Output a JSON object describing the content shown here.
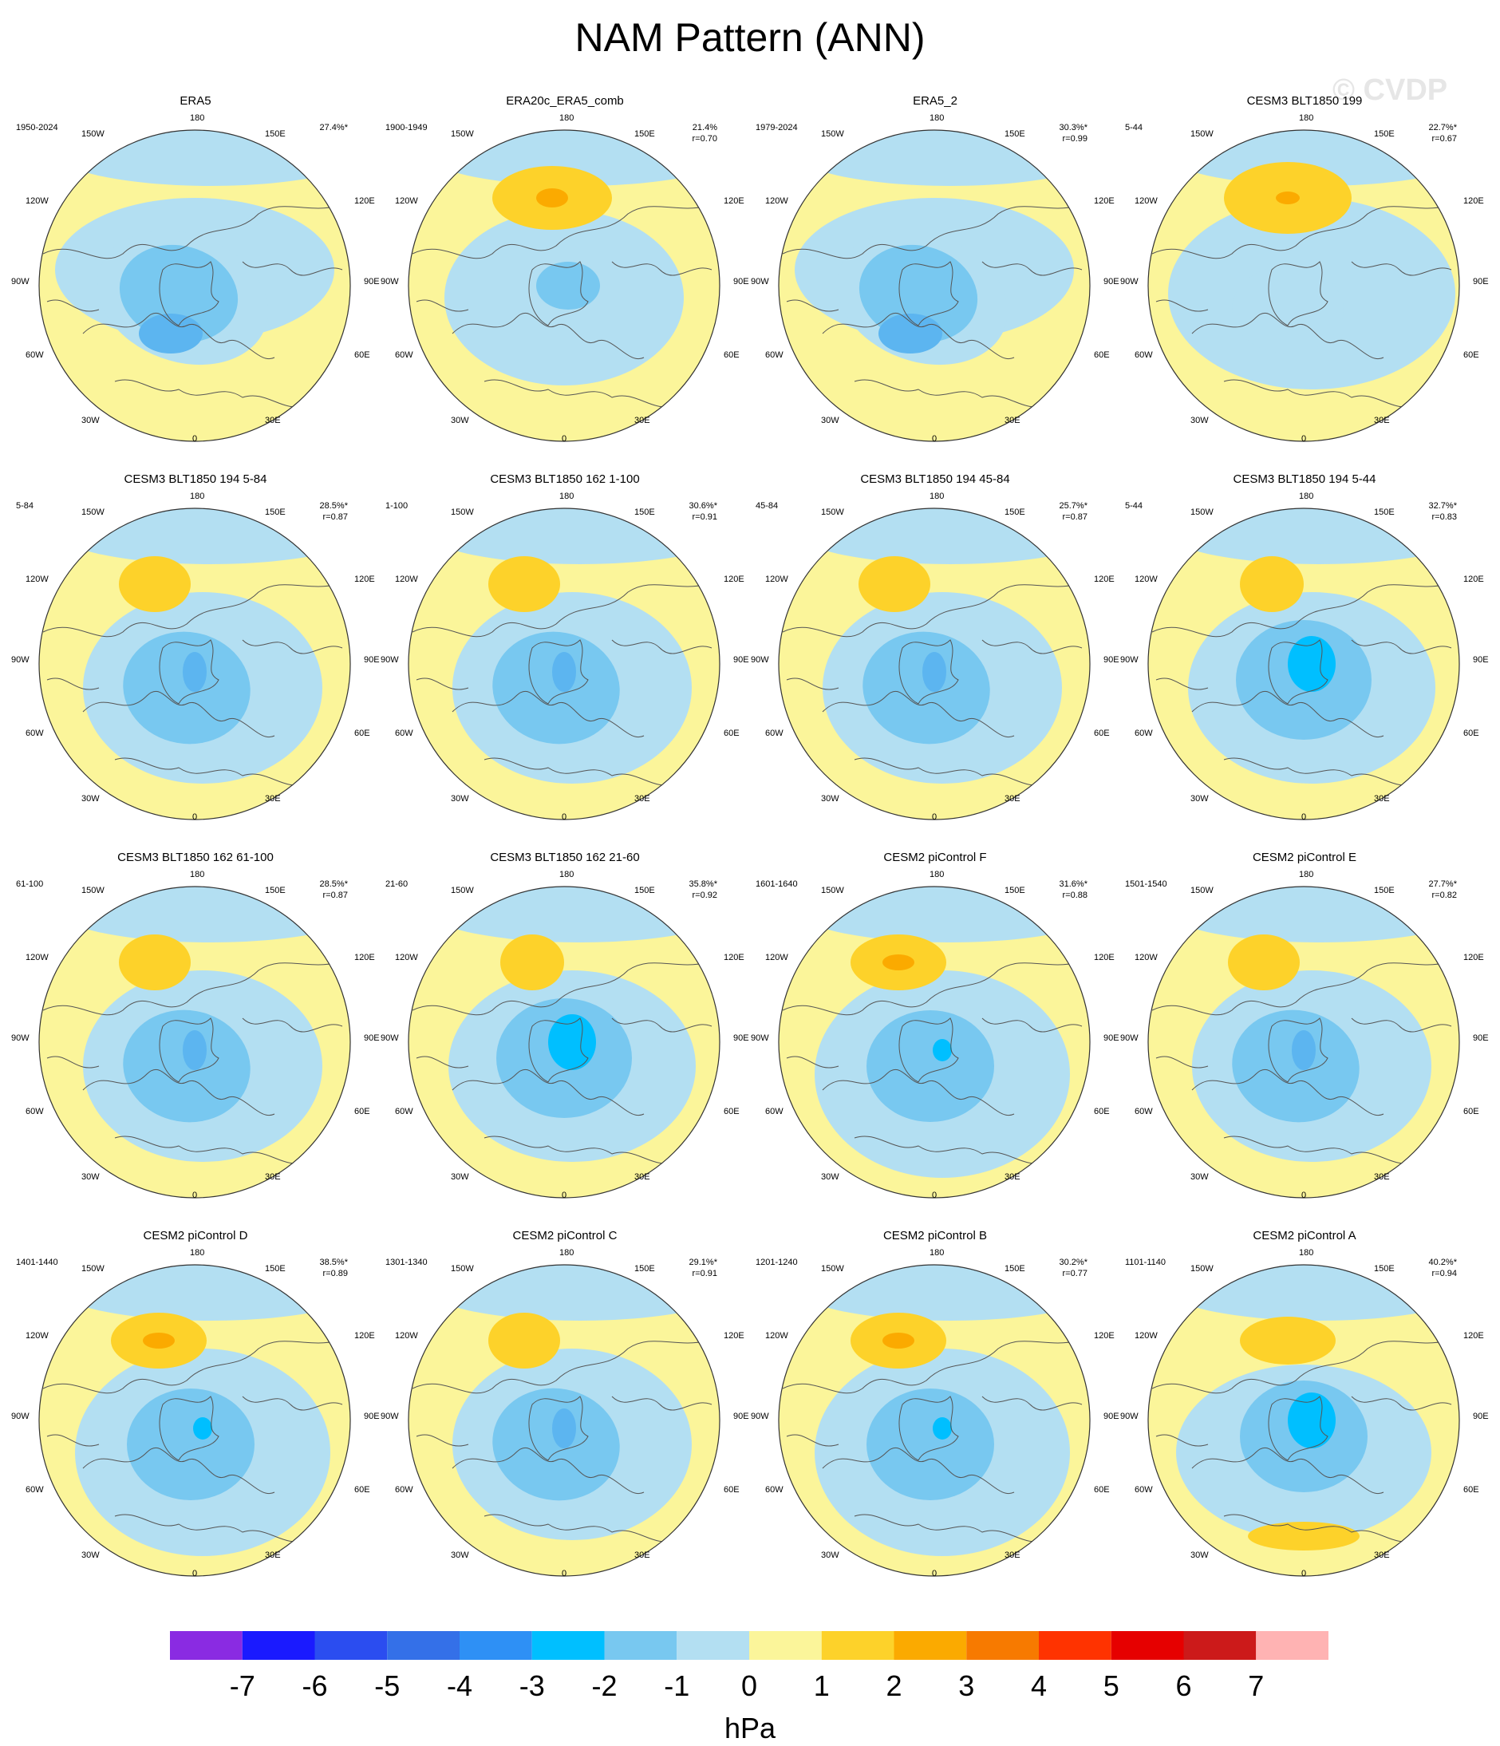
{
  "title": "NAM Pattern (ANN)",
  "watermark": "© CVDP",
  "lon_labels": [
    "180",
    "150W",
    "150E",
    "120W",
    "120E",
    "90W",
    "90E",
    "60W",
    "60E",
    "30W",
    "30E",
    "0"
  ],
  "panels": [
    {
      "title": "ERA5",
      "period": "1950-2024",
      "pct": "27.4%*",
      "r": "",
      "pattern": "A"
    },
    {
      "title": "ERA20c_ERA5_comb",
      "period": "1900-1949",
      "pct": "21.4%",
      "r": "r=0.70",
      "pattern": "B"
    },
    {
      "title": "ERA5_2",
      "period": "1979-2024",
      "pct": "30.3%*",
      "r": "r=0.99",
      "pattern": "A"
    },
    {
      "title": "CESM3 BLT1850 199",
      "period": "5-44",
      "pct": "22.7%*",
      "r": "r=0.67",
      "pattern": "C"
    },
    {
      "title": "CESM3 BLT1850 194 5-84",
      "period": "5-84",
      "pct": "28.5%*",
      "r": "r=0.87",
      "pattern": "D"
    },
    {
      "title": "CESM3 BLT1850 162 1-100",
      "period": "1-100",
      "pct": "30.6%*",
      "r": "r=0.91",
      "pattern": "D"
    },
    {
      "title": "CESM3 BLT1850 194 45-84",
      "period": "45-84",
      "pct": "25.7%*",
      "r": "r=0.87",
      "pattern": "D"
    },
    {
      "title": "CESM3 BLT1850 194 5-44",
      "period": "5-44",
      "pct": "32.7%*",
      "r": "r=0.83",
      "pattern": "E"
    },
    {
      "title": "CESM3 BLT1850 162 61-100",
      "period": "61-100",
      "pct": "28.5%*",
      "r": "r=0.87",
      "pattern": "D"
    },
    {
      "title": "CESM3 BLT1850 162 21-60",
      "period": "21-60",
      "pct": "35.8%*",
      "r": "r=0.92",
      "pattern": "E"
    },
    {
      "title": "CESM2 piControl F",
      "period": "1601-1640",
      "pct": "31.6%*",
      "r": "r=0.88",
      "pattern": "F"
    },
    {
      "title": "CESM2 piControl E",
      "period": "1501-1540",
      "pct": "27.7%*",
      "r": "r=0.82",
      "pattern": "D"
    },
    {
      "title": "CESM2 piControl D",
      "period": "1401-1440",
      "pct": "38.5%*",
      "r": "r=0.89",
      "pattern": "F"
    },
    {
      "title": "CESM2 piControl C",
      "period": "1301-1340",
      "pct": "29.1%*",
      "r": "r=0.91",
      "pattern": "D"
    },
    {
      "title": "CESM2 piControl B",
      "period": "1201-1240",
      "pct": "30.2%*",
      "r": "r=0.77",
      "pattern": "F"
    },
    {
      "title": "CESM2 piControl A",
      "period": "1101-1140",
      "pct": "40.2%*",
      "r": "r=0.94",
      "pattern": "G"
    }
  ],
  "colorbar": {
    "unit": "hPa",
    "ticks": [
      "-7",
      "-6",
      "-5",
      "-4",
      "-3",
      "-2",
      "-1",
      "0",
      "1",
      "2",
      "3",
      "4",
      "5",
      "6",
      "7"
    ],
    "colors": [
      "#8a2be2",
      "#1a1aff",
      "#2b4df0",
      "#3470e8",
      "#2e90f5",
      "#00bfff",
      "#78c8f0",
      "#b3dff2",
      "#fbf59a",
      "#fdd22a",
      "#fbaa00",
      "#f77a00",
      "#ff3300",
      "#e60000",
      "#cc1a1a",
      "#ffb3b3"
    ]
  },
  "palette": {
    "neg1": "#b3dff2",
    "neg2": "#78c8f0",
    "neg3": "#5cb5f0",
    "neg4": "#00bfff",
    "pos1": "#fbf59a",
    "pos2": "#fdd22a",
    "pos3": "#fbaa00"
  }
}
